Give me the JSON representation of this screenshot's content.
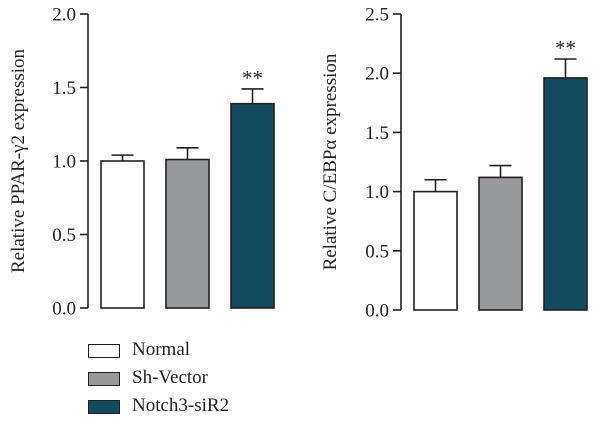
{
  "chart_data": [
    {
      "type": "bar",
      "title": "",
      "xlabel": "",
      "ylabel": "Relative PPAR-γ2 expression",
      "ylim": [
        0,
        2.0
      ],
      "yticks": [
        0.0,
        0.5,
        1.0,
        1.5,
        2.0
      ],
      "ytick_labels": [
        "0.0",
        "0.5",
        "1.0",
        "1.5",
        "2.0"
      ],
      "categories": [
        "Normal",
        "Sh-Vector",
        "Notch3-siR2"
      ],
      "values": [
        1.0,
        1.01,
        1.39
      ],
      "errors": [
        0.04,
        0.08,
        0.1
      ],
      "annotations": [
        "",
        "",
        "**"
      ],
      "grid": false
    },
    {
      "type": "bar",
      "title": "",
      "xlabel": "",
      "ylabel": "Relative C/EBPα expression",
      "ylim": [
        0,
        2.5
      ],
      "yticks": [
        0.0,
        0.5,
        1.0,
        1.5,
        2.0,
        2.5
      ],
      "ytick_labels": [
        "0.0",
        "0.5",
        "1.0",
        "1.5",
        "2.0",
        "2.5"
      ],
      "categories": [
        "Normal",
        "Sh-Vector",
        "Notch3-siR2"
      ],
      "values": [
        1.0,
        1.12,
        1.96
      ],
      "errors": [
        0.1,
        0.1,
        0.16
      ],
      "annotations": [
        "",
        "",
        "**"
      ],
      "grid": false
    }
  ],
  "legend": {
    "placement": "bottom-left",
    "items": [
      {
        "label": "Normal",
        "color": "#ffffff"
      },
      {
        "label": "Sh-Vector",
        "color": "#98999b"
      },
      {
        "label": "Notch3-siR2",
        "color": "#144a5e"
      }
    ]
  },
  "colors": {
    "axis": "#231f20",
    "normal": "#ffffff",
    "sh_vector": "#98999b",
    "notch3_sir2": "#144a5e"
  }
}
